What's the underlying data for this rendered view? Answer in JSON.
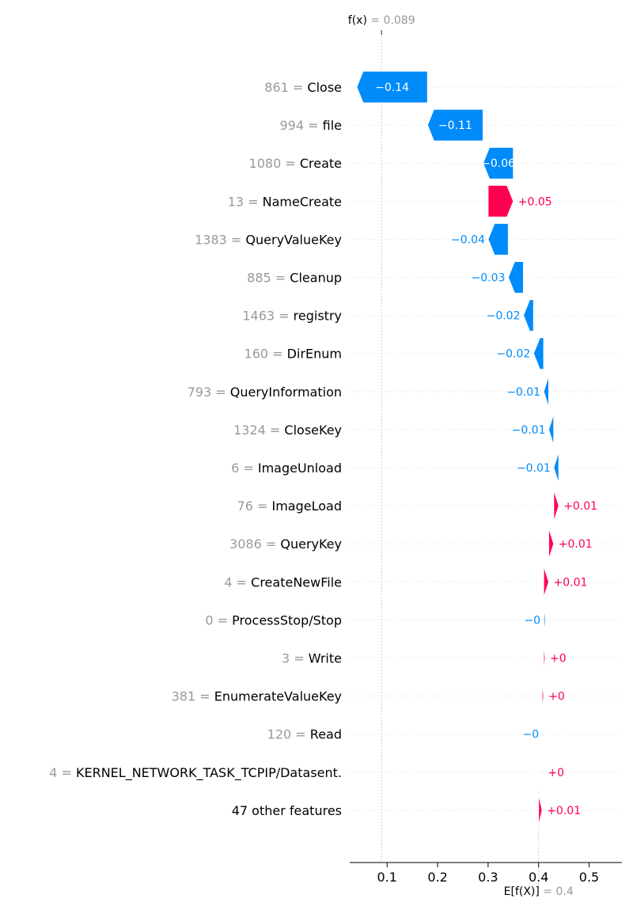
{
  "chart_data": {
    "type": "waterfall",
    "fx": {
      "symbol": "f(x)",
      "equals": "= 0.089",
      "value": 0.089
    },
    "ex": {
      "symbol": "E[f(X)]",
      "equals": "= 0.4",
      "value": 0.4
    },
    "xticks": [
      0.1,
      0.2,
      0.3,
      0.4,
      0.5
    ],
    "xtick_labels": [
      "0.1",
      "0.2",
      "0.3",
      "0.4",
      "0.5"
    ],
    "xlim": [
      0.026,
      0.565
    ],
    "features": [
      {
        "value_text": "861 =",
        "name": "Close",
        "shap": -0.14,
        "label": "−0.14"
      },
      {
        "value_text": "994 =",
        "name": "file",
        "shap": -0.11,
        "label": "−0.11"
      },
      {
        "value_text": "1080 =",
        "name": "Create",
        "shap": -0.06,
        "label": "−0.06"
      },
      {
        "value_text": "13 =",
        "name": "NameCreate",
        "shap": 0.05,
        "label": "+0.05"
      },
      {
        "value_text": "1383 =",
        "name": "QueryValueKey",
        "shap": -0.04,
        "label": "−0.04"
      },
      {
        "value_text": "885 =",
        "name": "Cleanup",
        "shap": -0.03,
        "label": "−0.03"
      },
      {
        "value_text": "1463 =",
        "name": "registry",
        "shap": -0.02,
        "label": "−0.02"
      },
      {
        "value_text": "160 =",
        "name": "DirEnum",
        "shap": -0.02,
        "label": "−0.02"
      },
      {
        "value_text": "793 =",
        "name": "QueryInformation",
        "shap": -0.01,
        "label": "−0.01"
      },
      {
        "value_text": "1324 =",
        "name": "CloseKey",
        "shap": -0.01,
        "label": "−0.01"
      },
      {
        "value_text": "6 =",
        "name": "ImageUnload",
        "shap": -0.01,
        "label": "−0.01"
      },
      {
        "value_text": "76 =",
        "name": "ImageLoad",
        "shap": 0.01,
        "label": "+0.01"
      },
      {
        "value_text": "3086 =",
        "name": "QueryKey",
        "shap": 0.01,
        "label": "+0.01"
      },
      {
        "value_text": "4 =",
        "name": "CreateNewFile",
        "shap": 0.01,
        "label": "+0.01"
      },
      {
        "value_text": "0 =",
        "name": "ProcessStop/Stop",
        "shap": -0.003,
        "label": "−0"
      },
      {
        "value_text": "3 =",
        "name": "Write",
        "shap": 0.003,
        "label": "+0"
      },
      {
        "value_text": "381 =",
        "name": "EnumerateValueKey",
        "shap": 0.003,
        "label": "+0"
      },
      {
        "value_text": "120 =",
        "name": "Read",
        "shap": -0.002,
        "label": "−0"
      },
      {
        "value_text": "4 =",
        "name": "KERNEL_NETWORK_TASK_TCPIP/Datasent.",
        "shap": 0.002,
        "label": "+0"
      },
      {
        "value_text": "",
        "name": "47 other features",
        "shap": 0.007,
        "label": "+0.01"
      }
    ],
    "colors": {
      "negative": "#008bfb",
      "positive": "#ff0051",
      "gray_text": "#999999",
      "grid": "#cccccc"
    }
  }
}
